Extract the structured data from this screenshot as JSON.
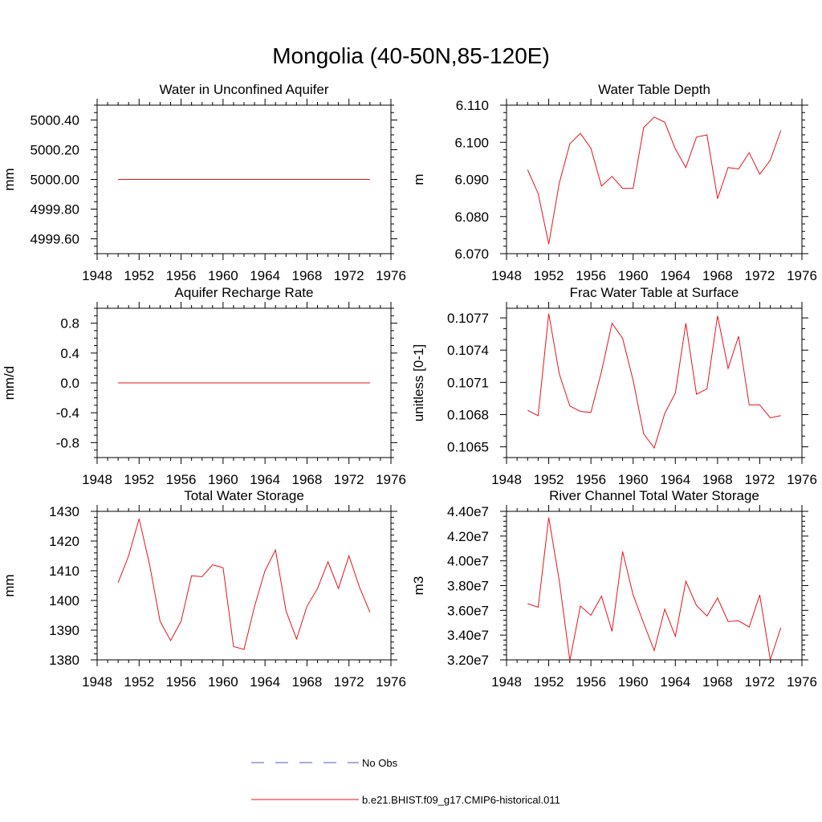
{
  "page": {
    "title": "Mongolia (40-50N,85-120E)"
  },
  "legend": {
    "items": [
      {
        "label": "No Obs",
        "color": "#4b5bbf",
        "dash": "dashed"
      },
      {
        "label": "b.e21.BHIST.f09_g17.CMIP6-historical.011",
        "color": "#e8141c",
        "dash": "solid"
      }
    ]
  },
  "chart_data": [
    {
      "type": "line",
      "title": "Water in Unconfined Aquifer",
      "ylabel": "mm",
      "xlim": [
        1948,
        1976
      ],
      "xticks": [
        "1948",
        "1952",
        "1956",
        "1960",
        "1964",
        "1968",
        "1972",
        "1976"
      ],
      "ylim": [
        4999.5,
        5000.5
      ],
      "yticks": [
        4999.6,
        4999.8,
        5000.0,
        5000.2,
        5000.4
      ],
      "ytick_labels": [
        "4999.60",
        "4999.80",
        "5000.00",
        "5000.20",
        "5000.40"
      ],
      "ytick_minor": 0.05,
      "x": [
        1950,
        1974
      ],
      "series": [
        {
          "color": "#e8141c",
          "values": [
            5000.0,
            5000.0
          ]
        }
      ]
    },
    {
      "type": "line",
      "title": "Water Table Depth",
      "ylabel": "m",
      "xlim": [
        1948,
        1976
      ],
      "xticks": [
        "1948",
        "1952",
        "1956",
        "1960",
        "1964",
        "1968",
        "1972",
        "1976"
      ],
      "ylim": [
        6.07,
        6.11
      ],
      "yticks": [
        6.07,
        6.08,
        6.09,
        6.1,
        6.11
      ],
      "ytick_labels": [
        "6.070",
        "6.080",
        "6.090",
        "6.100",
        "6.110"
      ],
      "ytick_minor": 0.002,
      "x": [
        1950,
        1951,
        1952,
        1953,
        1954,
        1955,
        1956,
        1957,
        1958,
        1959,
        1960,
        1961,
        1962,
        1963,
        1964,
        1965,
        1966,
        1967,
        1968,
        1969,
        1970,
        1971,
        1972,
        1973,
        1974
      ],
      "series": [
        {
          "color": "#e8141c",
          "values": [
            6.0926,
            6.0862,
            6.0726,
            6.089,
            6.0996,
            6.1024,
            6.0984,
            6.0882,
            6.0908,
            6.0876,
            6.0876,
            6.104,
            6.1068,
            6.1054,
            6.0982,
            6.0932,
            6.1014,
            6.102,
            6.0848,
            6.0932,
            6.0928,
            6.0972,
            6.0914,
            6.0952,
            6.1032
          ]
        }
      ]
    },
    {
      "type": "line",
      "title": "Aquifer Recharge Rate",
      "ylabel": "mm/d",
      "xlim": [
        1948,
        1976
      ],
      "xticks": [
        "1948",
        "1952",
        "1956",
        "1960",
        "1964",
        "1968",
        "1972",
        "1976"
      ],
      "ylim": [
        -1.0,
        1.0
      ],
      "yticks": [
        -0.8,
        -0.4,
        0.0,
        0.4,
        0.8
      ],
      "ytick_labels": [
        "-0.8",
        "-0.4",
        "0.0",
        "0.4",
        "0.8"
      ],
      "ytick_minor": 0.1,
      "x": [
        1950,
        1974
      ],
      "series": [
        {
          "color": "#e8141c",
          "values": [
            0.0,
            0.0
          ]
        }
      ]
    },
    {
      "type": "line",
      "title": "Frac Water Table at Surface",
      "ylabel": "unitless [0-1]",
      "xlim": [
        1948,
        1976
      ],
      "xticks": [
        "1948",
        "1952",
        "1956",
        "1960",
        "1964",
        "1968",
        "1972",
        "1976"
      ],
      "ylim": [
        0.1064,
        0.10779
      ],
      "yticks": [
        0.1065,
        0.1068,
        0.1071,
        0.1074,
        0.1077
      ],
      "ytick_labels": [
        "0.1065",
        "0.1068",
        "0.1071",
        "0.1074",
        "0.1077"
      ],
      "ytick_minor": 0.0001,
      "x": [
        1950,
        1951,
        1952,
        1953,
        1954,
        1955,
        1956,
        1957,
        1958,
        1959,
        1960,
        1961,
        1962,
        1963,
        1964,
        1965,
        1966,
        1967,
        1968,
        1969,
        1970,
        1971,
        1972,
        1973,
        1974
      ],
      "series": [
        {
          "color": "#e8141c",
          "values": [
            0.10684,
            0.10679,
            0.10774,
            0.10718,
            0.10688,
            0.10683,
            0.10682,
            0.1072,
            0.10765,
            0.10751,
            0.10712,
            0.10662,
            0.10649,
            0.10681,
            0.107,
            0.10765,
            0.10699,
            0.10704,
            0.10772,
            0.10723,
            0.10753,
            0.10689,
            0.10689,
            0.10677,
            0.10679
          ]
        }
      ]
    },
    {
      "type": "line",
      "title": "Total Water Storage",
      "ylabel": "mm",
      "xlim": [
        1948,
        1976
      ],
      "xticks": [
        "1948",
        "1952",
        "1956",
        "1960",
        "1964",
        "1968",
        "1972",
        "1976"
      ],
      "ylim": [
        1380,
        1430
      ],
      "yticks": [
        1380,
        1390,
        1400,
        1410,
        1420,
        1430
      ],
      "ytick_labels": [
        "1380",
        "1390",
        "1400",
        "1410",
        "1420",
        "1430"
      ],
      "ytick_minor": 2,
      "x": [
        1950,
        1951,
        1952,
        1953,
        1954,
        1955,
        1956,
        1957,
        1958,
        1959,
        1960,
        1961,
        1962,
        1963,
        1964,
        1965,
        1966,
        1967,
        1968,
        1969,
        1970,
        1971,
        1972,
        1973,
        1974
      ],
      "series": [
        {
          "color": "#e8141c",
          "values": [
            1406,
            1415,
            1427.5,
            1412,
            1393,
            1386.5,
            1393,
            1408.3,
            1408,
            1412,
            1411,
            1384.5,
            1383.5,
            1398,
            1410,
            1417,
            1396.5,
            1387,
            1398,
            1404,
            1413,
            1404,
            1415,
            1404.5,
            1396
          ]
        }
      ]
    },
    {
      "type": "line",
      "title": "River Channel Total Water Storage",
      "ylabel": "m3",
      "xlim": [
        1948,
        1976
      ],
      "xticks": [
        "1948",
        "1952",
        "1956",
        "1960",
        "1964",
        "1968",
        "1972",
        "1976"
      ],
      "ylim": [
        32000000,
        44000000
      ],
      "yticks": [
        32000000,
        34000000,
        36000000,
        38000000,
        40000000,
        42000000,
        44000000
      ],
      "ytick_labels": [
        "3.20e7",
        "3.40e7",
        "3.60e7",
        "3.80e7",
        "4.00e7",
        "4.20e7",
        "4.40e7"
      ],
      "ytick_minor": 400000,
      "x": [
        1950,
        1951,
        1952,
        1953,
        1954,
        1955,
        1956,
        1957,
        1958,
        1959,
        1960,
        1961,
        1962,
        1963,
        1964,
        1965,
        1966,
        1967,
        1968,
        1969,
        1970,
        1971,
        1972,
        1973,
        1974
      ],
      "series": [
        {
          "color": "#e8141c",
          "values": [
            36550000,
            36250000,
            43500000,
            38400000,
            31950000,
            36350000,
            35600000,
            37150000,
            34300000,
            40750000,
            37250000,
            34950000,
            32750000,
            36100000,
            33900000,
            38350000,
            36400000,
            35550000,
            37000000,
            35100000,
            35150000,
            34650000,
            37250000,
            32000000,
            34600000
          ]
        }
      ]
    }
  ]
}
